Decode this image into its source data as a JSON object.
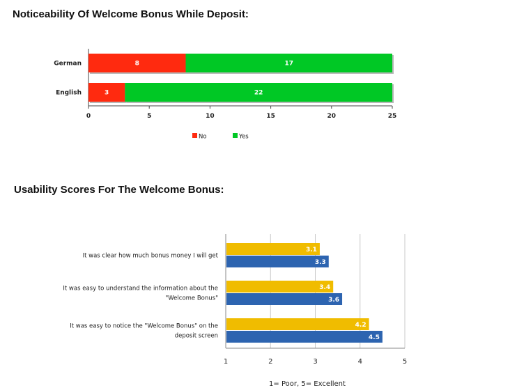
{
  "chart_data": [
    {
      "type": "bar",
      "orientation": "horizontal",
      "stacked": true,
      "title": "Noticeability Of Welcome Bonus While Deposit:",
      "categories": [
        "German",
        "English"
      ],
      "series": [
        {
          "name": "No",
          "color": "#ff2a0f",
          "values": [
            8,
            3
          ]
        },
        {
          "name": "Yes",
          "color": "#00c825",
          "values": [
            17,
            22
          ]
        }
      ],
      "xlim": [
        0,
        25
      ],
      "xticks": [
        0,
        5,
        10,
        15,
        20,
        25
      ],
      "legend": "bottom",
      "grid": false
    },
    {
      "type": "bar",
      "orientation": "horizontal",
      "title": "Usability Scores For The Welcome Bonus:",
      "categories": [
        [
          "It was clear how much bonus money I will get"
        ],
        [
          "It was easy to understand the information about the",
          "\"Welcome Bonus\""
        ],
        [
          "It was easy to notice the \"Welcome Bonus\"  on the",
          "deposit screen"
        ]
      ],
      "series": [
        {
          "color": "#f0bc00",
          "values": [
            3.1,
            3.4,
            4.2
          ]
        },
        {
          "color": "#2d64b0",
          "values": [
            3.3,
            3.6,
            4.5
          ]
        }
      ],
      "xlim": [
        1,
        5
      ],
      "xticks": [
        1,
        2,
        3,
        4,
        5
      ],
      "note": "1= Poor,   5= Excellent",
      "grid": true
    }
  ]
}
